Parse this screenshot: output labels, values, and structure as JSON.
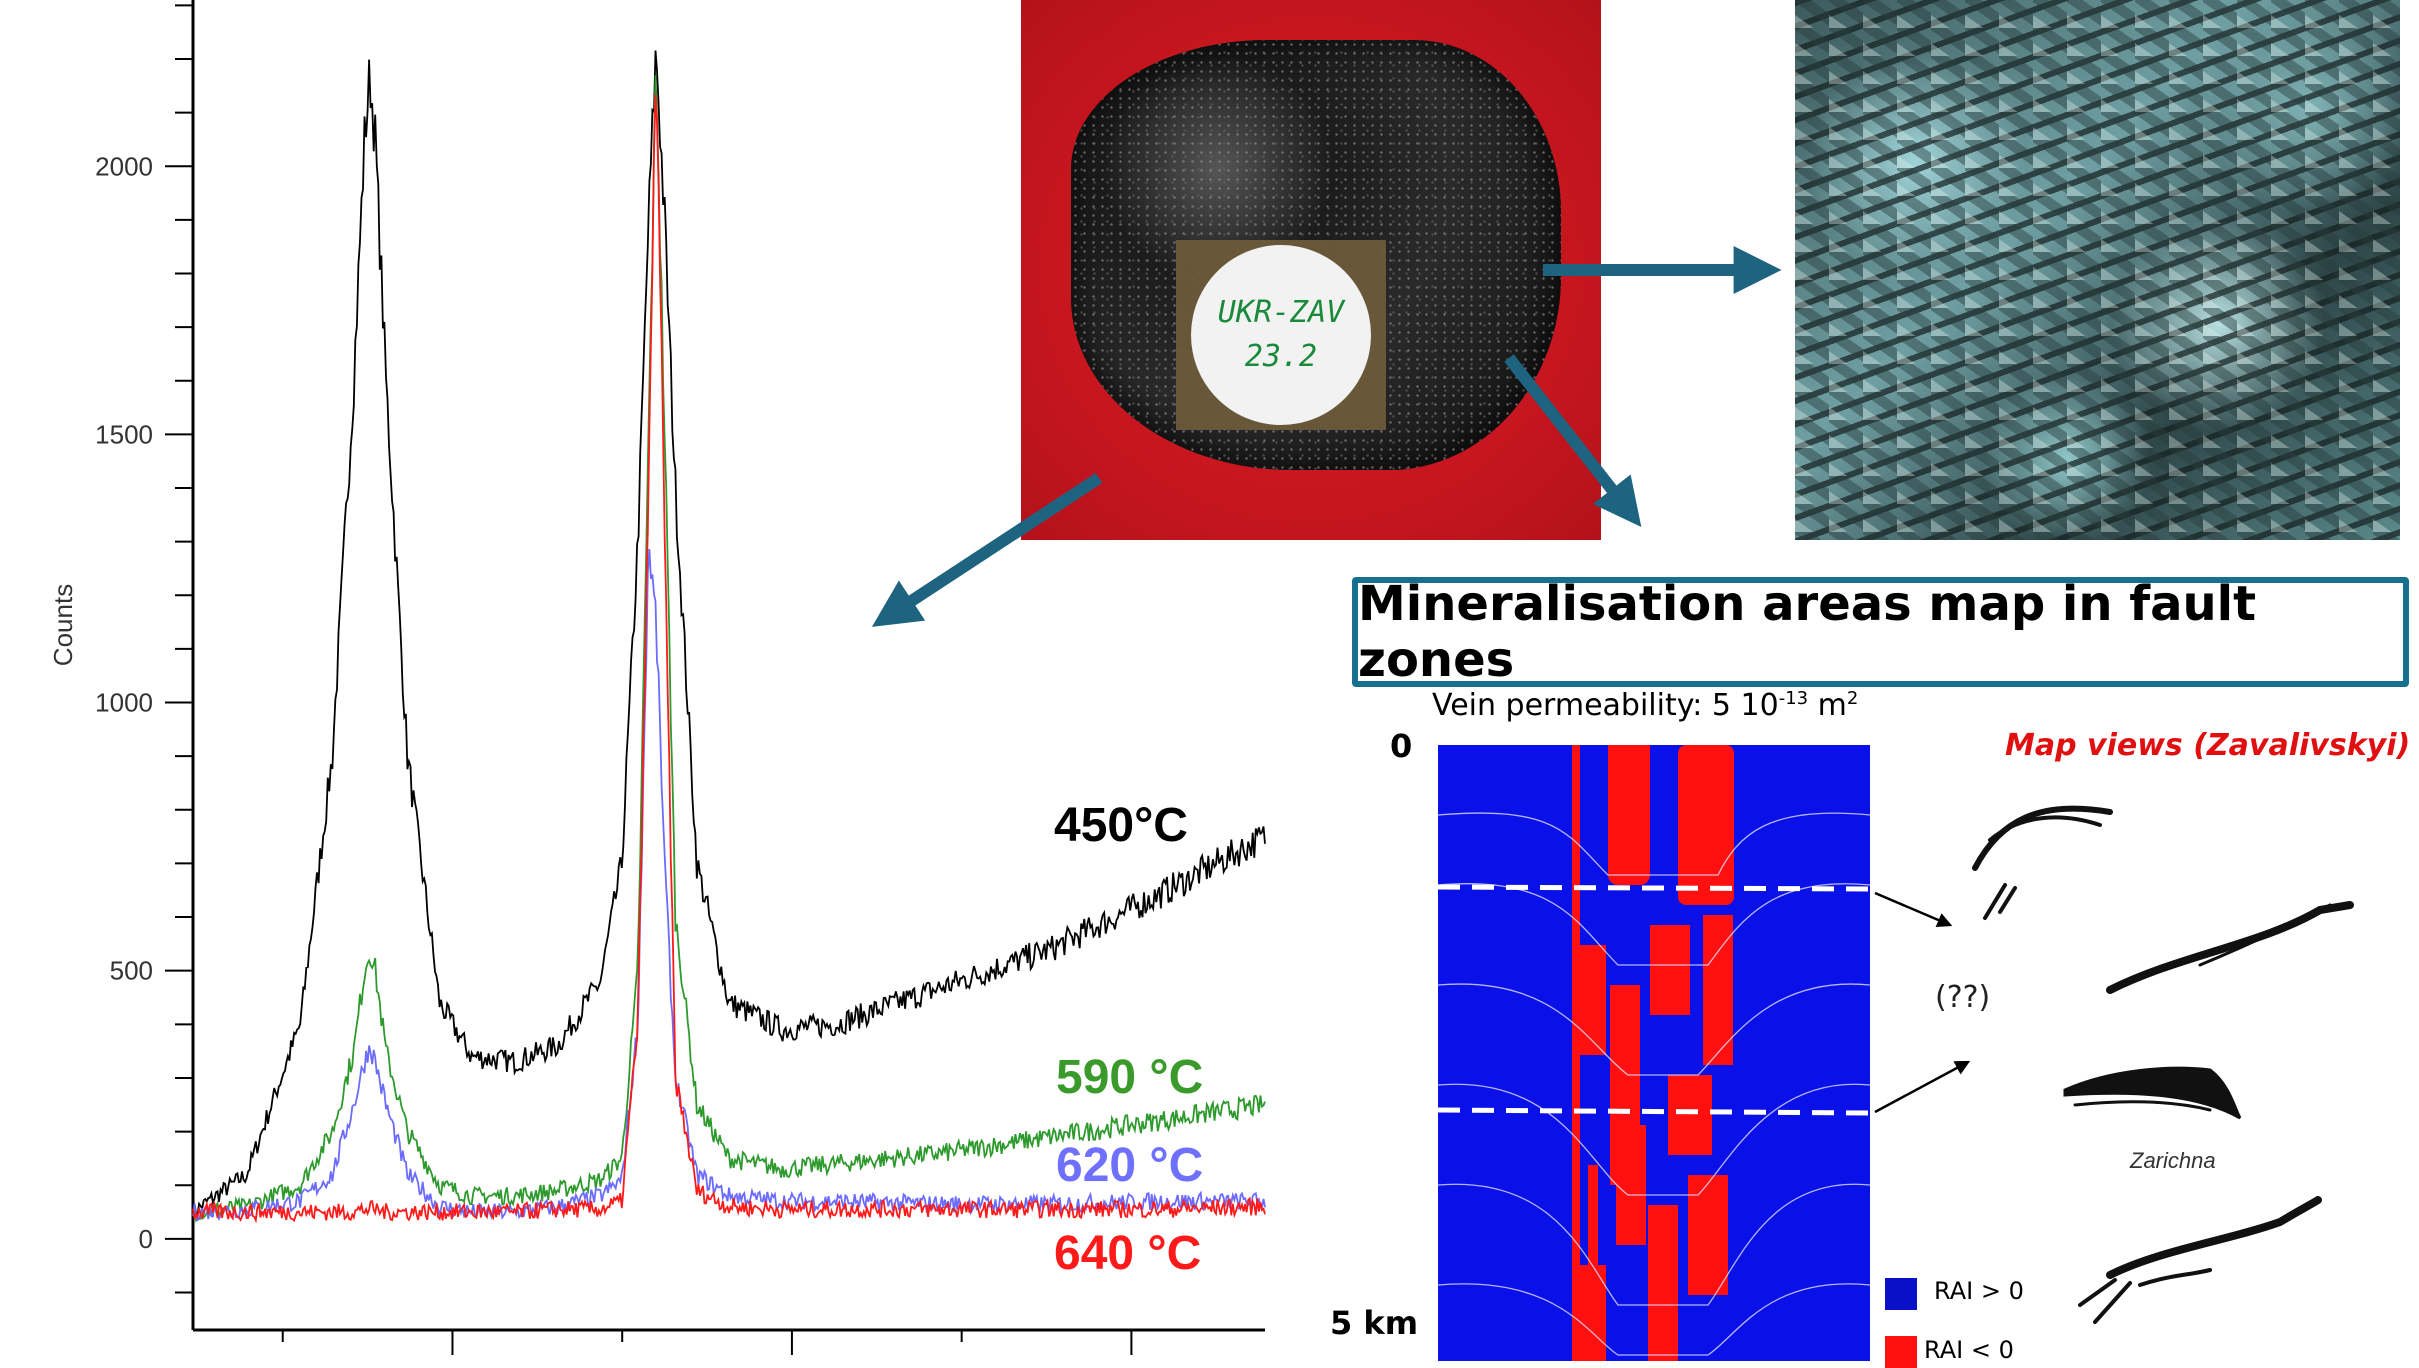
{
  "chart_data": {
    "type": "line",
    "title": "",
    "xlabel": "",
    "ylabel": "Counts",
    "ylim": [
      -170,
      2310
    ],
    "xlim": [
      0,
      1000
    ],
    "y_ticks": [
      0,
      500,
      1000,
      1500,
      2000
    ],
    "grid": false,
    "x": [
      0,
      50,
      100,
      130,
      150,
      160,
      165,
      170,
      180,
      200,
      230,
      260,
      300,
      340,
      380,
      400,
      415,
      425,
      432,
      440,
      450,
      470,
      500,
      550,
      600,
      700,
      800,
      900,
      1000
    ],
    "series": [
      {
        "name": "450°C",
        "color": "#000000",
        "values": [
          50,
          120,
          400,
          900,
          1600,
          2050,
          2170,
          2050,
          1600,
          900,
          440,
          340,
          330,
          360,
          480,
          700,
          1300,
          1900,
          2220,
          1900,
          1400,
          700,
          440,
          390,
          400,
          470,
          540,
          640,
          750
        ]
      },
      {
        "name": "590 °C",
        "color": "#2e9a2e",
        "values": [
          50,
          60,
          100,
          200,
          350,
          500,
          540,
          500,
          350,
          200,
          100,
          80,
          80,
          90,
          110,
          150,
          500,
          1500,
          2200,
          1500,
          600,
          250,
          150,
          130,
          140,
          160,
          190,
          220,
          250
        ]
      },
      {
        "name": "620 °C",
        "color": "#6b6bff",
        "values": [
          50,
          55,
          70,
          120,
          250,
          330,
          360,
          330,
          250,
          120,
          60,
          50,
          50,
          60,
          80,
          110,
          400,
          1300,
          1150,
          700,
          300,
          120,
          80,
          70,
          70,
          65,
          65,
          70,
          70
        ]
      },
      {
        "name": "640 °C",
        "color": "#ff1a1a",
        "values": [
          50,
          50,
          50,
          50,
          50,
          55,
          55,
          55,
          50,
          50,
          50,
          50,
          50,
          55,
          55,
          70,
          400,
          1400,
          2220,
          1300,
          300,
          90,
          60,
          55,
          55,
          55,
          55,
          55,
          60
        ]
      }
    ]
  },
  "sample_label": {
    "line1": "UKR-ZAV",
    "line2": "23.2"
  },
  "title_box": "Mineralisation areas map in fault zones",
  "vein": {
    "prefix": "Vein permeability:  5 10",
    "exp": "-13",
    "unit": " m",
    "unit_exp": "2"
  },
  "model": {
    "top_depth": "0",
    "bottom_depth": "5 km"
  },
  "map_views": {
    "title": "Map views (Zavalivskyi)",
    "question": "(??)",
    "place": "Zarichna"
  },
  "legend": [
    {
      "label": "RAI > 0",
      "color": "#0a10c8"
    },
    {
      "label": "RAI < 0",
      "color": "#ff1010"
    }
  ],
  "arrow_color": "#1e6480"
}
